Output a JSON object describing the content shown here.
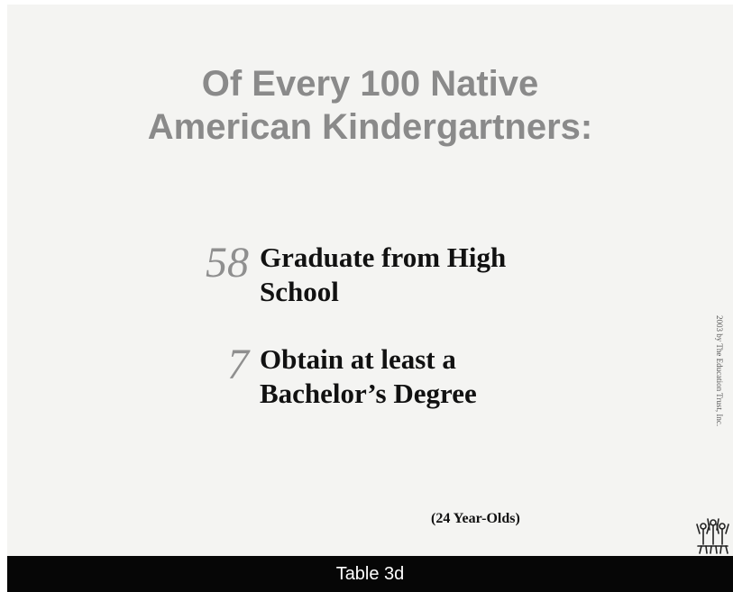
{
  "slide": {
    "title_line1": "Of Every 100 Native",
    "title_line2": "American Kindergartners:",
    "stats": [
      {
        "number": "58",
        "line1": "Graduate from High",
        "line2": "School"
      },
      {
        "number": "7",
        "line1": "Obtain at least a",
        "line2": "Bachelor’s Degree"
      }
    ],
    "note": "(24 Year-Olds)",
    "copyright": "2003 by The Education Trust, Inc."
  },
  "footer": {
    "label": "Table 3d"
  },
  "colors": {
    "background": "#f4f4f2",
    "title": "#8a8a8a",
    "number": "#8f8f8f",
    "text": "#111111",
    "footer_bg": "#060606",
    "footer_text": "#ffffff"
  }
}
